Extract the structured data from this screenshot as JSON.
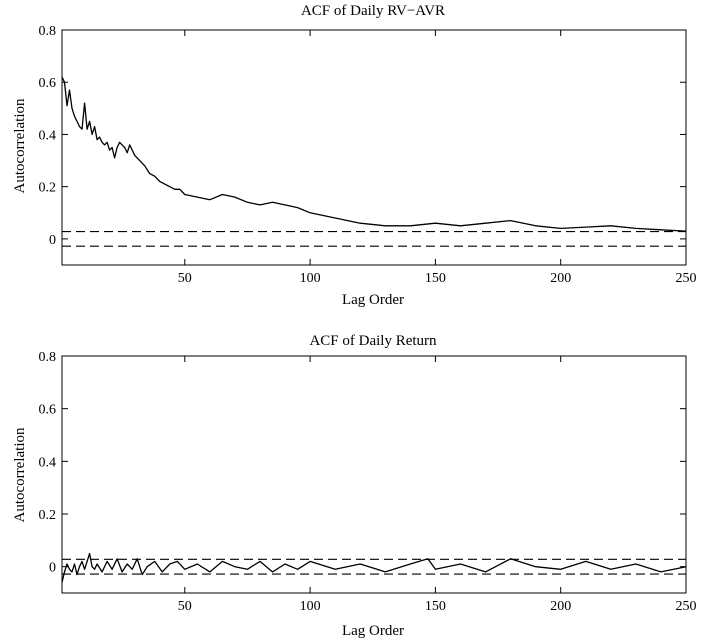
{
  "chart_data": [
    {
      "type": "line",
      "title": "ACF of Daily RV−AVR",
      "xlabel": "Lag Order",
      "ylabel": "Autocorrelation",
      "xlim": [
        1,
        250
      ],
      "ylim": [
        -0.1,
        0.8
      ],
      "xticks": [
        50,
        100,
        150,
        200,
        250
      ],
      "yticks": [
        0,
        0.2,
        0.4,
        0.6,
        0.8
      ],
      "tick_labels_x": [
        "50",
        "100",
        "150",
        "200",
        "250"
      ],
      "tick_labels_y": [
        "0",
        "0.2",
        "0.4",
        "0.6",
        "0.8"
      ],
      "confidence_bounds": [
        0.028,
        -0.028
      ],
      "grid": false,
      "series": [
        {
          "x": [
            1,
            2,
            3,
            4,
            5,
            6,
            7,
            8,
            9,
            10,
            11,
            12,
            13,
            14,
            15,
            16,
            17,
            18,
            19,
            20,
            21,
            22,
            23,
            24,
            25,
            26,
            27,
            28,
            29,
            30,
            32,
            34,
            36,
            38,
            40,
            42,
            44,
            46,
            48,
            50,
            55,
            60,
            65,
            70,
            75,
            80,
            85,
            90,
            95,
            100,
            110,
            120,
            130,
            140,
            150,
            160,
            170,
            180,
            190,
            200,
            210,
            220,
            230,
            240,
            250
          ],
          "values": [
            0.62,
            0.6,
            0.51,
            0.57,
            0.5,
            0.47,
            0.45,
            0.43,
            0.42,
            0.52,
            0.42,
            0.45,
            0.4,
            0.43,
            0.38,
            0.39,
            0.37,
            0.36,
            0.37,
            0.34,
            0.35,
            0.31,
            0.35,
            0.37,
            0.36,
            0.35,
            0.33,
            0.36,
            0.34,
            0.32,
            0.3,
            0.28,
            0.25,
            0.24,
            0.22,
            0.21,
            0.2,
            0.19,
            0.19,
            0.17,
            0.16,
            0.15,
            0.17,
            0.16,
            0.14,
            0.13,
            0.14,
            0.13,
            0.12,
            0.1,
            0.08,
            0.06,
            0.05,
            0.05,
            0.06,
            0.05,
            0.06,
            0.07,
            0.05,
            0.04,
            0.045,
            0.05,
            0.04,
            0.035,
            0.03
          ]
        }
      ]
    },
    {
      "type": "line",
      "title": "ACF of Daily Return",
      "xlabel": "Lag Order",
      "ylabel": "Autocorrelation",
      "xlim": [
        1,
        250
      ],
      "ylim": [
        -0.1,
        0.8
      ],
      "xticks": [
        50,
        100,
        150,
        200,
        250
      ],
      "yticks": [
        0,
        0.2,
        0.4,
        0.6,
        0.8
      ],
      "tick_labels_x": [
        "50",
        "100",
        "150",
        "200",
        "250"
      ],
      "tick_labels_y": [
        "0",
        "0.2",
        "0.4",
        "0.6",
        "0.8"
      ],
      "confidence_bounds": [
        0.028,
        -0.028
      ],
      "grid": false,
      "series": [
        {
          "x": [
            1,
            2,
            3,
            4,
            5,
            6,
            7,
            8,
            9,
            10,
            11,
            12,
            13,
            14,
            15,
            17,
            19,
            21,
            23,
            25,
            27,
            29,
            31,
            33,
            35,
            38,
            41,
            44,
            47,
            50,
            55,
            60,
            65,
            70,
            75,
            80,
            85,
            90,
            95,
            100,
            110,
            120,
            130,
            140,
            147,
            150,
            160,
            170,
            180,
            190,
            200,
            210,
            220,
            230,
            240,
            250
          ],
          "values": [
            -0.06,
            -0.02,
            0.01,
            -0.01,
            -0.02,
            0.01,
            -0.03,
            0.0,
            0.02,
            -0.01,
            0.02,
            0.05,
            0.0,
            -0.01,
            0.01,
            -0.02,
            0.02,
            -0.01,
            0.03,
            -0.02,
            0.01,
            -0.01,
            0.03,
            -0.03,
            0.0,
            0.02,
            -0.02,
            0.01,
            0.02,
            -0.01,
            0.01,
            -0.02,
            0.02,
            0.0,
            -0.01,
            0.02,
            -0.02,
            0.01,
            -0.01,
            0.02,
            -0.01,
            0.01,
            -0.02,
            0.01,
            0.03,
            -0.01,
            0.01,
            -0.02,
            0.03,
            0.0,
            -0.01,
            0.02,
            -0.01,
            0.01,
            -0.02,
            0.0
          ]
        }
      ]
    }
  ]
}
